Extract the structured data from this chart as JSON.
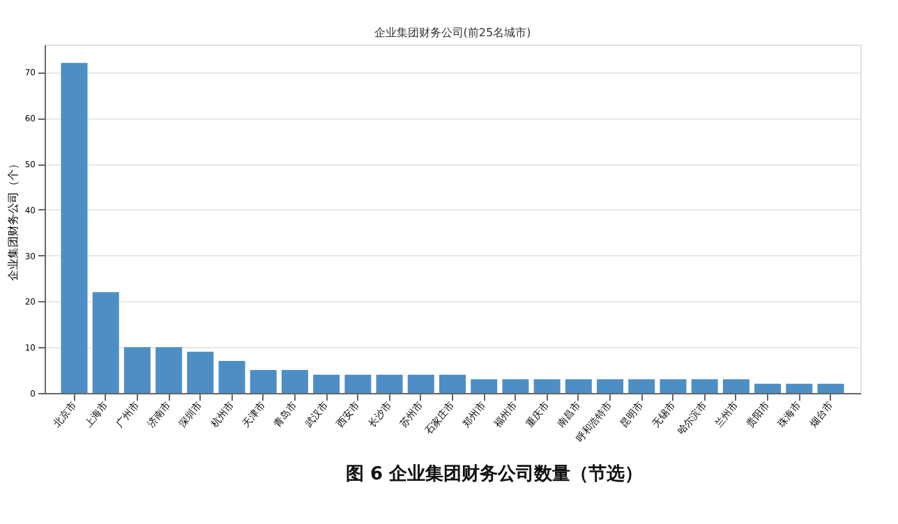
{
  "chart_data": {
    "type": "bar",
    "title": "企业集团财务公司(前25名城市)",
    "ylabel": "企业集团财务公司（个）",
    "categories": [
      "北京市",
      "上海市",
      "广州市",
      "济南市",
      "深圳市",
      "杭州市",
      "天津市",
      "青岛市",
      "武汉市",
      "西安市",
      "长沙市",
      "苏州市",
      "石家庄市",
      "郑州市",
      "福州市",
      "重庆市",
      "南昌市",
      "呼和浩特市",
      "昆明市",
      "无锡市",
      "哈尔滨市",
      "兰州市",
      "贵阳市",
      "珠海市",
      "烟台市"
    ],
    "values": [
      72,
      22,
      10,
      10,
      9,
      7,
      5,
      5,
      4,
      4,
      4,
      4,
      4,
      3,
      3,
      3,
      3,
      3,
      3,
      3,
      3,
      3,
      2,
      2,
      2
    ],
    "color": "#4d8fc4",
    "ylim": [
      0,
      76
    ],
    "yticks": [
      0,
      10,
      20,
      30,
      40,
      50,
      60,
      70
    ],
    "grid": "y",
    "annotations": [
      "图 6  企业集团财务公司数量（节选）"
    ]
  }
}
